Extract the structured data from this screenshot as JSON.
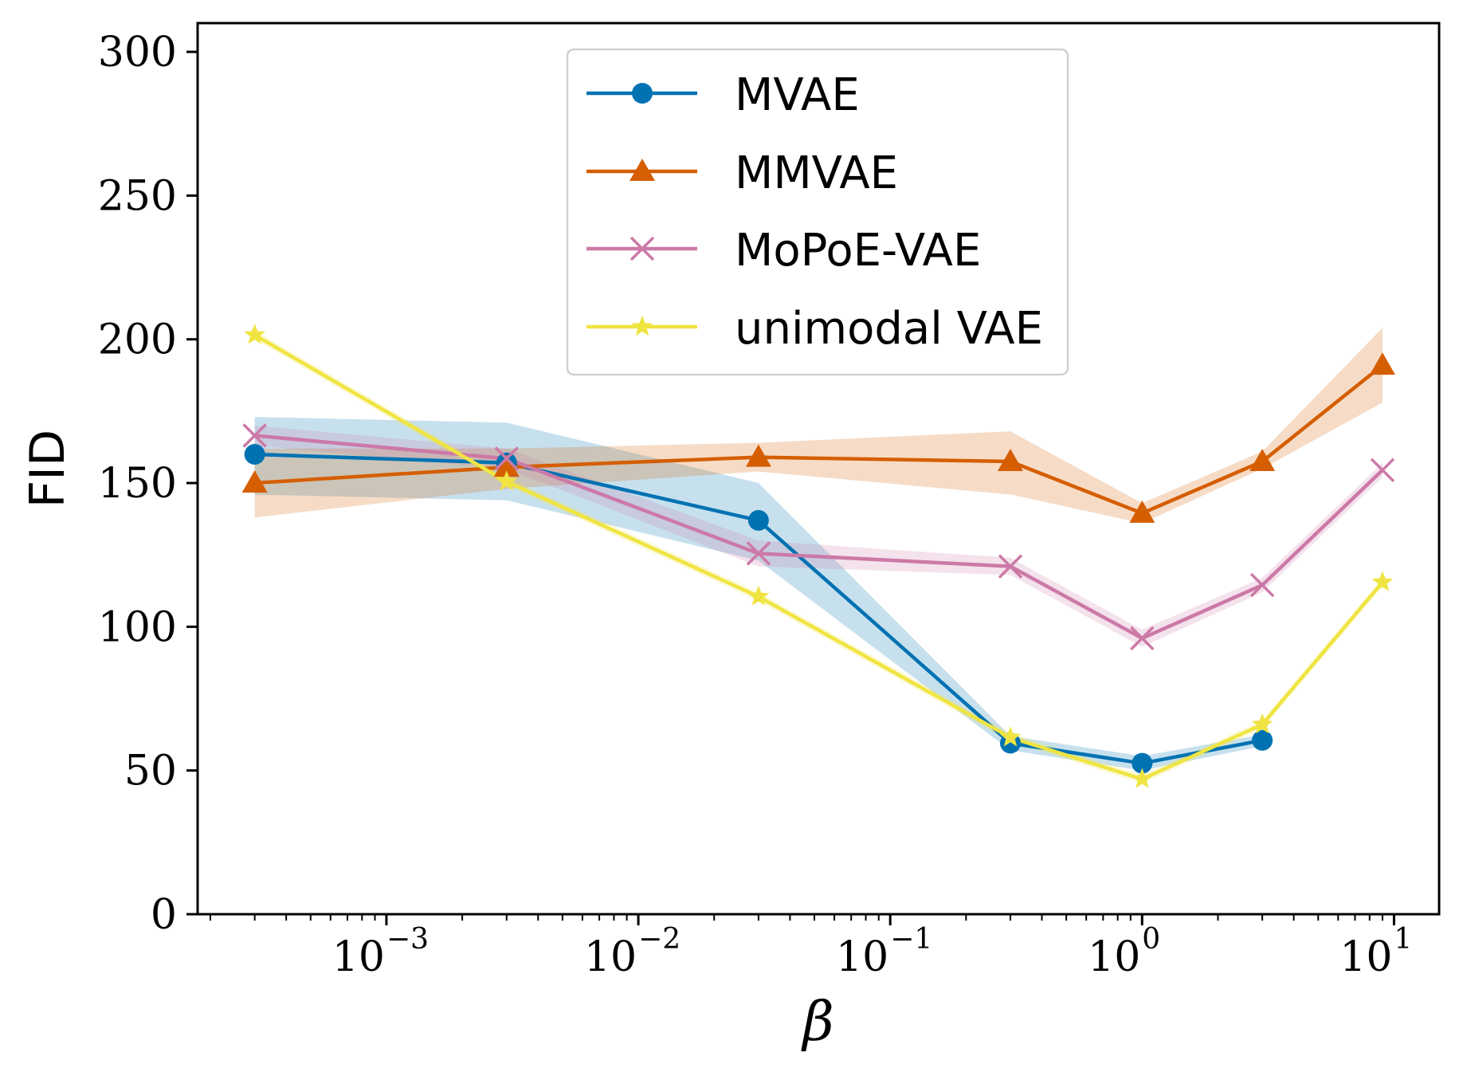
{
  "chart_data": {
    "type": "line",
    "title": "",
    "xlabel": "β",
    "ylabel": "FID",
    "xscale": "log",
    "xlim": [
      0.000178,
      15.1
    ],
    "ylim": [
      0,
      310
    ],
    "grid": false,
    "x": [
      0.0003,
      0.003,
      0.03,
      0.3,
      1,
      3,
      9
    ],
    "xticks": [
      {
        "value": 0.001,
        "base": "10",
        "exp": "−3"
      },
      {
        "value": 0.01,
        "base": "10",
        "exp": "−2"
      },
      {
        "value": 0.1,
        "base": "10",
        "exp": "−1"
      },
      {
        "value": 1,
        "base": "10",
        "exp": "0"
      },
      {
        "value": 10,
        "base": "10",
        "exp": "1"
      }
    ],
    "yticks": [
      0,
      50,
      100,
      150,
      200,
      250,
      300
    ],
    "ytick_labels": [
      "0",
      "50",
      "100",
      "150",
      "200",
      "250",
      "300"
    ],
    "legend_position": "top-center",
    "series": [
      {
        "name": "MVAE",
        "color": "#0072b2",
        "marker": "circle",
        "x": [
          0.0003,
          0.003,
          0.03,
          0.3,
          1,
          3
        ],
        "values": [
          160,
          157,
          137,
          59.5,
          52.5,
          60.5
        ],
        "band_lower": [
          146,
          144,
          123,
          57,
          50,
          58.5
        ],
        "band_upper": [
          173,
          171,
          150,
          62,
          55,
          62.5
        ]
      },
      {
        "name": "MMVAE",
        "color": "#d55e00",
        "marker": "triangle",
        "x": [
          0.0003,
          0.003,
          0.03,
          0.3,
          1,
          3,
          9
        ],
        "values": [
          150,
          155.5,
          159,
          157.5,
          139.5,
          157.5,
          191
        ],
        "band_lower": [
          138,
          148,
          154,
          146,
          136,
          155,
          178
        ],
        "band_upper": [
          162,
          162,
          164,
          168,
          143,
          161,
          204
        ]
      },
      {
        "name": "MoPoE-VAE",
        "color": "#cc79a7",
        "marker": "x",
        "x": [
          0.0003,
          0.003,
          0.03,
          0.3,
          1,
          3,
          9
        ],
        "values": [
          166.5,
          158.5,
          125.5,
          121,
          96,
          114.5,
          154.5
        ],
        "band_lower": [
          163,
          155,
          121,
          118,
          93,
          112,
          152
        ],
        "band_upper": [
          170,
          162,
          130,
          124,
          99,
          117,
          157
        ]
      },
      {
        "name": "unimodal VAE",
        "color": "#f0e442",
        "marker": "star",
        "x": [
          0.0003,
          0.003,
          0.03,
          0.3,
          1,
          3,
          9
        ],
        "values": [
          201.5,
          150.5,
          110.5,
          61.5,
          47,
          66,
          115.5
        ],
        "band_lower": [
          200,
          149,
          109,
          60,
          45.5,
          64.5,
          114
        ],
        "band_upper": [
          203,
          152,
          112,
          63,
          48.5,
          67.5,
          117
        ]
      }
    ]
  }
}
